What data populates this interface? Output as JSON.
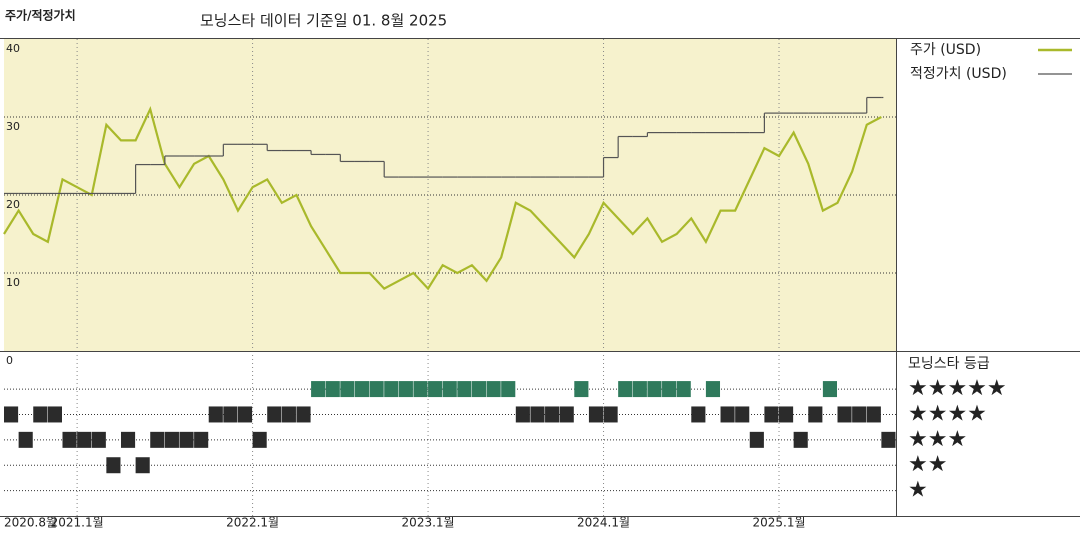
{
  "chart_data": [
    {
      "type": "line",
      "title": "주가/적정가치",
      "subtitle": "모닝스타 데이터 기준일 01. 8월 2025",
      "x": [
        "2020-08",
        "2020-09",
        "2020-10",
        "2020-11",
        "2020-12",
        "2021-01",
        "2021-02",
        "2021-03",
        "2021-04",
        "2021-05",
        "2021-06",
        "2021-07",
        "2021-08",
        "2021-09",
        "2021-10",
        "2021-11",
        "2021-12",
        "2022-01",
        "2022-02",
        "2022-03",
        "2022-04",
        "2022-05",
        "2022-06",
        "2022-07",
        "2022-08",
        "2022-09",
        "2022-10",
        "2022-11",
        "2022-12",
        "2023-01",
        "2023-02",
        "2023-03",
        "2023-04",
        "2023-05",
        "2023-06",
        "2023-07",
        "2023-08",
        "2023-09",
        "2023-10",
        "2023-11",
        "2023-12",
        "2024-01",
        "2024-02",
        "2024-03",
        "2024-04",
        "2024-05",
        "2024-06",
        "2024-07",
        "2024-08",
        "2024-09",
        "2024-10",
        "2024-11",
        "2024-12",
        "2025-01",
        "2025-02",
        "2025-03",
        "2025-04",
        "2025-05",
        "2025-06",
        "2025-07",
        "2025-08"
      ],
      "series": [
        {
          "name": "주가 (USD)",
          "color": "#a9b92b",
          "style": "line",
          "values": [
            15,
            18,
            15,
            14,
            22,
            21,
            20,
            29,
            27,
            27,
            31,
            24,
            21,
            24,
            25,
            22,
            18,
            21,
            22,
            19,
            20,
            16,
            13,
            10,
            10,
            10,
            8,
            9,
            10,
            8,
            11,
            10,
            11,
            9,
            12,
            19,
            18,
            16,
            14,
            12,
            15,
            19,
            17,
            15,
            17,
            14,
            15,
            17,
            14,
            18,
            18,
            22,
            26,
            25,
            28,
            24,
            18,
            19,
            23,
            29,
            30
          ]
        },
        {
          "name": "적정가치 (USD)",
          "color": "#555555",
          "style": "step",
          "values": [
            20.2,
            20.2,
            20.2,
            20.2,
            20.2,
            20.2,
            20.2,
            20.2,
            20.2,
            23.9,
            23.9,
            25,
            25,
            25,
            25,
            26.5,
            26.5,
            26.5,
            25.7,
            25.7,
            25.7,
            25.2,
            25.2,
            24.3,
            24.3,
            24.3,
            22.3,
            22.3,
            22.3,
            22.3,
            22.3,
            22.3,
            22.3,
            22.3,
            22.3,
            22.3,
            22.3,
            22.3,
            22.3,
            22.3,
            22.3,
            24.8,
            27.5,
            27.5,
            28,
            28,
            28,
            28,
            28,
            28,
            28,
            28,
            30.5,
            30.5,
            30.5,
            30.5,
            30.5,
            30.5,
            30.5,
            32.5,
            32.5
          ]
        }
      ],
      "xlim": [
        "2020-08",
        "2025-09"
      ],
      "xticks": [
        {
          "value": "2020-08",
          "label": "2020.8월"
        },
        {
          "value": "2021-01",
          "label": "2021.1월"
        },
        {
          "value": "2022-01",
          "label": "2022.1월"
        },
        {
          "value": "2023-01",
          "label": "2023.1월"
        },
        {
          "value": "2024-01",
          "label": "2024.1월"
        },
        {
          "value": "2025-01",
          "label": "2025.1월"
        }
      ],
      "ylim": [
        0,
        40
      ],
      "yticks": [
        0,
        10,
        20,
        30,
        40
      ],
      "grid": true,
      "background": "#f6f2cd"
    },
    {
      "type": "rating",
      "title": "모닝스타 등급",
      "x": [
        "2020-08",
        "2020-09",
        "2020-10",
        "2020-11",
        "2020-12",
        "2021-01",
        "2021-02",
        "2021-03",
        "2021-04",
        "2021-05",
        "2021-06",
        "2021-07",
        "2021-08",
        "2021-09",
        "2021-10",
        "2021-11",
        "2021-12",
        "2022-01",
        "2022-02",
        "2022-03",
        "2022-04",
        "2022-05",
        "2022-06",
        "2022-07",
        "2022-08",
        "2022-09",
        "2022-10",
        "2022-11",
        "2022-12",
        "2023-01",
        "2023-02",
        "2023-03",
        "2023-04",
        "2023-05",
        "2023-06",
        "2023-07",
        "2023-08",
        "2023-09",
        "2023-10",
        "2023-11",
        "2023-12",
        "2024-01",
        "2024-02",
        "2024-03",
        "2024-04",
        "2024-05",
        "2024-06",
        "2024-07",
        "2024-08",
        "2024-09",
        "2024-10",
        "2024-11",
        "2024-12",
        "2025-01",
        "2025-02",
        "2025-03",
        "2025-04",
        "2025-05",
        "2025-06",
        "2025-07",
        "2025-08"
      ],
      "values": [
        4,
        3,
        4,
        4,
        3,
        3,
        3,
        2,
        3,
        2,
        3,
        3,
        3,
        3,
        4,
        4,
        4,
        3,
        4,
        4,
        4,
        5,
        5,
        5,
        5,
        5,
        5,
        5,
        5,
        5,
        5,
        5,
        5,
        5,
        5,
        4,
        4,
        4,
        4,
        5,
        4,
        4,
        5,
        5,
        5,
        5,
        5,
        4,
        5,
        4,
        4,
        3,
        4,
        4,
        3,
        4,
        5,
        4,
        4,
        4,
        3
      ],
      "colors": [
        "#2b2b2b",
        "#2b2b2b",
        "#2b2b2b",
        "#2b2b2b",
        "#2f7a5c"
      ],
      "ylim": [
        0,
        6.5
      ],
      "yticks": [
        {
          "value": 5,
          "label": "★★★★★"
        },
        {
          "value": 4,
          "label": "★★★★"
        },
        {
          "value": 3,
          "label": "★★★"
        },
        {
          "value": 2,
          "label": "★★"
        },
        {
          "value": 1,
          "label": "★"
        }
      ]
    }
  ]
}
